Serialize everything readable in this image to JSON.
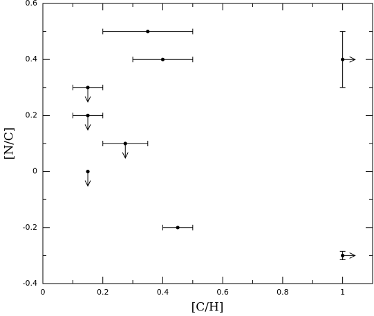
{
  "chart_data": {
    "type": "scatter",
    "x_label": "[C/H]",
    "y_label": "[N/C]",
    "xlim": [
      0,
      1.1
    ],
    "ylim": [
      -0.4,
      0.6
    ],
    "xticks": [
      0,
      0.2,
      0.4,
      0.6,
      0.8,
      1
    ],
    "yticks": [
      -0.4,
      -0.2,
      0,
      0.2,
      0.4,
      0.6
    ],
    "xminorticks": [
      0.1,
      0.3,
      0.5,
      0.7,
      0.9
    ],
    "yminorticks": [
      -0.3,
      -0.1,
      0.1,
      0.3,
      0.5
    ],
    "color": "#000000",
    "x": [
      0.35,
      0.4,
      1.0,
      0.15,
      0.15,
      0.275,
      0.15,
      0.45,
      1.0
    ],
    "values": [
      0.5,
      0.4,
      0.4,
      0.3,
      0.2,
      0.1,
      0,
      -0.2,
      -0.3
    ],
    "xerr": [
      0.15,
      0.1,
      null,
      0.05,
      0.05,
      0.075,
      null,
      0.05,
      null
    ],
    "yerr": [
      null,
      null,
      0.1,
      null,
      null,
      null,
      null,
      null,
      0.015
    ],
    "limits": [
      null,
      null,
      "right",
      "down",
      "down",
      "down",
      "down",
      null,
      "right"
    ]
  }
}
